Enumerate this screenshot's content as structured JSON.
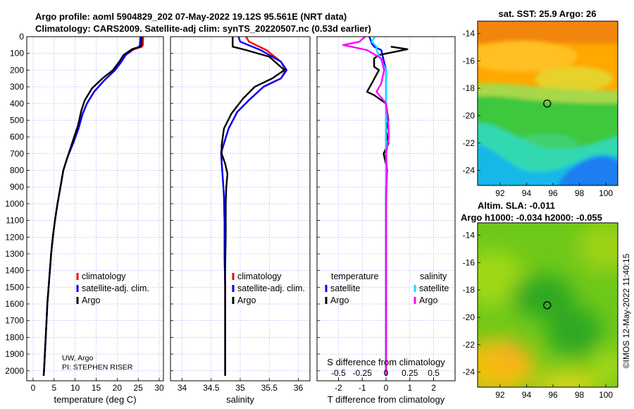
{
  "header": {
    "title_line1": "Argo profile: aoml 5904829_202 07-May-2022 19.12S 95.561E (NRT data)",
    "title_line2": "Climatology: CARS2009. Satellite-adj clim: synTS_20220507.nc (0.53d earlier)"
  },
  "credits": {
    "line1": "UW, Argo",
    "line2": "PI: STEPHEN RISER"
  },
  "stamp": "©IMOS 12-May-2022 11:40:15",
  "colors": {
    "climatology": "#ff0000",
    "satellite": "#0000ff",
    "argo": "#000000",
    "sal_satellite": "#00e5ff",
    "sal_argo": "#ff00ff"
  },
  "chart_data": [
    {
      "type": "line",
      "xlabel": "temperature (deg C)",
      "ylabel": "",
      "xlim": [
        -1.5,
        31
      ],
      "ylim": [
        2060,
        0
      ],
      "xticks": [
        0,
        5,
        10,
        15,
        20,
        25,
        30
      ],
      "yticks": [
        0,
        100,
        200,
        300,
        400,
        500,
        600,
        700,
        800,
        900,
        1000,
        1100,
        1200,
        1300,
        1400,
        1500,
        1600,
        1700,
        1800,
        1900,
        2000
      ],
      "grid": true,
      "legend": {
        "placement": "lower-right",
        "entries": [
          "climatology",
          "satellite-adj. clim.",
          "Argo"
        ]
      },
      "series": [
        {
          "name": "climatology",
          "color": "#ff0000",
          "points": [
            [
              26.2,
              0
            ],
            [
              26.1,
              50
            ],
            [
              25.9,
              60
            ],
            [
              24,
              75
            ],
            [
              22,
              110
            ],
            [
              21,
              150
            ],
            [
              19.5,
              200
            ],
            [
              17,
              260
            ],
            [
              14.5,
              330
            ],
            [
              12.8,
              400
            ],
            [
              11.8,
              460
            ],
            [
              10.8,
              550
            ],
            [
              9.5,
              640
            ],
            [
              8.2,
              720
            ],
            [
              7.2,
              800
            ],
            [
              6.5,
              900
            ],
            [
              5.8,
              1000
            ],
            [
              5.2,
              1100
            ],
            [
              4.7,
              1200
            ],
            [
              4.3,
              1300
            ],
            [
              4,
              1400
            ],
            [
              3.7,
              1500
            ],
            [
              3.4,
              1600
            ],
            [
              3.2,
              1700
            ],
            [
              3,
              1800
            ],
            [
              2.8,
              1900
            ],
            [
              2.6,
              2000
            ],
            [
              2.5,
              2030
            ]
          ]
        },
        {
          "name": "satellite-adj. clim.",
          "color": "#0000ff",
          "points": [
            [
              25.5,
              0
            ],
            [
              25.4,
              50
            ],
            [
              25.2,
              60
            ],
            [
              23.8,
              75
            ],
            [
              22,
              110
            ],
            [
              21,
              150
            ],
            [
              19.5,
              200
            ],
            [
              17,
              260
            ],
            [
              14.5,
              330
            ],
            [
              12.8,
              400
            ],
            [
              11.8,
              460
            ],
            [
              10.8,
              550
            ],
            [
              9.5,
              640
            ],
            [
              8.2,
              720
            ],
            [
              7.2,
              800
            ],
            [
              6.5,
              900
            ],
            [
              5.8,
              1000
            ],
            [
              5.2,
              1100
            ],
            [
              4.7,
              1200
            ],
            [
              4.3,
              1300
            ],
            [
              4,
              1400
            ],
            [
              3.7,
              1500
            ],
            [
              3.4,
              1600
            ],
            [
              3.2,
              1700
            ],
            [
              3,
              1800
            ],
            [
              2.8,
              1900
            ],
            [
              2.6,
              2000
            ],
            [
              2.5,
              2030
            ]
          ]
        },
        {
          "name": "Argo",
          "color": "#000000",
          "points": [
            [
              25.8,
              0
            ],
            [
              25.8,
              50
            ],
            [
              25.5,
              60
            ],
            [
              23.5,
              75
            ],
            [
              21.5,
              110
            ],
            [
              20.5,
              150
            ],
            [
              19,
              200
            ],
            [
              16.5,
              250
            ],
            [
              14,
              310
            ],
            [
              12.3,
              380
            ],
            [
              11.5,
              440
            ],
            [
              10.7,
              530
            ],
            [
              9.5,
              620
            ],
            [
              8.2,
              720
            ],
            [
              7.2,
              800
            ],
            [
              6.5,
              900
            ],
            [
              5.8,
              1000
            ],
            [
              5.2,
              1100
            ],
            [
              4.7,
              1200
            ],
            [
              4.3,
              1300
            ],
            [
              4,
              1400
            ],
            [
              3.7,
              1500
            ],
            [
              3.4,
              1600
            ],
            [
              3.2,
              1700
            ],
            [
              3,
              1800
            ],
            [
              2.8,
              1900
            ],
            [
              2.6,
              2000
            ],
            [
              2.5,
              2030
            ]
          ]
        }
      ]
    },
    {
      "type": "line",
      "xlabel": "salinity",
      "ylabel": "",
      "xlim": [
        33.8,
        36.2
      ],
      "ylim": [
        2060,
        0
      ],
      "xticks": [
        34,
        34.5,
        35,
        35.5,
        36
      ],
      "grid": true,
      "legend": {
        "placement": "lower-right",
        "entries": [
          "climatology",
          "satellite-adj. clim.",
          "Argo"
        ]
      },
      "series": [
        {
          "name": "climatology",
          "color": "#ff0000",
          "points": [
            [
              35.1,
              0
            ],
            [
              35.15,
              30
            ],
            [
              35.45,
              80
            ],
            [
              35.7,
              150
            ],
            [
              35.78,
              200
            ],
            [
              35.7,
              250
            ],
            [
              35.4,
              300
            ],
            [
              35.15,
              380
            ],
            [
              34.95,
              450
            ],
            [
              34.8,
              550
            ],
            [
              34.72,
              640
            ],
            [
              34.68,
              690
            ],
            [
              34.68,
              750
            ],
            [
              34.7,
              850
            ],
            [
              34.72,
              950
            ],
            [
              34.73,
              1100
            ],
            [
              34.73,
              1300
            ],
            [
              34.74,
              1500
            ],
            [
              34.74,
              1700
            ],
            [
              34.74,
              1900
            ],
            [
              34.74,
              2030
            ]
          ]
        },
        {
          "name": "satellite-adj. clim.",
          "color": "#0000ff",
          "points": [
            [
              34.97,
              0
            ],
            [
              35,
              30
            ],
            [
              35.35,
              80
            ],
            [
              35.7,
              150
            ],
            [
              35.8,
              200
            ],
            [
              35.7,
              250
            ],
            [
              35.4,
              300
            ],
            [
              35.15,
              380
            ],
            [
              34.95,
              450
            ],
            [
              34.8,
              550
            ],
            [
              34.72,
              640
            ],
            [
              34.67,
              690
            ],
            [
              34.68,
              750
            ],
            [
              34.7,
              850
            ],
            [
              34.72,
              950
            ],
            [
              34.73,
              1100
            ],
            [
              34.73,
              1300
            ],
            [
              34.74,
              1500
            ],
            [
              34.74,
              1700
            ],
            [
              34.74,
              1900
            ],
            [
              34.74,
              2030
            ]
          ]
        },
        {
          "name": "Argo",
          "color": "#000000",
          "points": [
            [
              34.87,
              0
            ],
            [
              34.87,
              60
            ],
            [
              35.1,
              80
            ],
            [
              35.5,
              120
            ],
            [
              35.76,
              200
            ],
            [
              35.55,
              250
            ],
            [
              35.25,
              300
            ],
            [
              35.05,
              370
            ],
            [
              34.85,
              460
            ],
            [
              34.72,
              550
            ],
            [
              34.68,
              650
            ],
            [
              34.68,
              700
            ],
            [
              34.74,
              760
            ],
            [
              34.78,
              820
            ],
            [
              34.76,
              900
            ],
            [
              34.75,
              1000
            ],
            [
              34.75,
              1200
            ],
            [
              34.74,
              1400
            ],
            [
              34.74,
              1600
            ],
            [
              34.74,
              1800
            ],
            [
              34.74,
              2030
            ]
          ]
        }
      ]
    },
    {
      "type": "line",
      "xlabel": "T difference from climatology",
      "x2label": "S difference from climatology",
      "ylabel": "",
      "xlim": [
        -2.9,
        2.9
      ],
      "x2lim": [
        -0.725,
        0.725
      ],
      "ylim": [
        2060,
        0
      ],
      "xticks": [
        -2,
        -1,
        0,
        1,
        2
      ],
      "x2ticks": [
        -0.5,
        -0.25,
        0,
        0.25,
        0.5
      ],
      "x2ticklabels": [
        "-0.5",
        "-0.25",
        "0",
        "0.25",
        "0.5"
      ],
      "grid": true,
      "legend": {
        "placement": "lower",
        "temperature_title": "temperature",
        "salinity_title": "salinity",
        "temperature_entries": [
          "satellite",
          "Argo"
        ],
        "salinity_entries": [
          "satellite",
          "Argo"
        ]
      },
      "series": [
        {
          "name": "satellite",
          "group": "temperature",
          "axis": "T",
          "color": "#0000ff",
          "points": [
            [
              -0.7,
              0
            ],
            [
              -0.6,
              40
            ],
            [
              -0.5,
              60
            ],
            [
              -0.2,
              80
            ],
            [
              0,
              200
            ],
            [
              0,
              700
            ],
            [
              0,
              1200
            ],
            [
              0,
              2030
            ]
          ]
        },
        {
          "name": "Argo",
          "group": "temperature",
          "axis": "T",
          "color": "#000000",
          "points": [
            [
              0.2,
              60
            ],
            [
              0.9,
              75
            ],
            [
              -0.3,
              110
            ],
            [
              -0.5,
              130
            ],
            [
              -0.5,
              180
            ],
            [
              -0.3,
              200
            ],
            [
              -0.6,
              280
            ],
            [
              -0.8,
              330
            ],
            [
              -0.5,
              350
            ],
            [
              0,
              400
            ],
            [
              0.1,
              500
            ],
            [
              0,
              560
            ],
            [
              0.1,
              640
            ],
            [
              -0.1,
              700
            ],
            [
              0.05,
              800
            ],
            [
              0,
              900
            ],
            [
              0,
              1100
            ],
            [
              0,
              1400
            ],
            [
              0,
              2030
            ]
          ]
        },
        {
          "name": "satellite",
          "group": "salinity",
          "axis": "S",
          "color": "#00e5ff",
          "points": [
            [
              -0.12,
              0
            ],
            [
              -0.15,
              30
            ],
            [
              -0.1,
              60
            ],
            [
              -0.1,
              80
            ],
            [
              0,
              200
            ],
            [
              0,
              700
            ],
            [
              0,
              1200
            ],
            [
              0,
              2030
            ]
          ]
        },
        {
          "name": "Argo",
          "group": "salinity",
          "axis": "S",
          "color": "#ff00ff",
          "points": [
            [
              -0.22,
              0
            ],
            [
              -0.28,
              30
            ],
            [
              -0.45,
              50
            ],
            [
              -0.2,
              80
            ],
            [
              -0.05,
              130
            ],
            [
              -0.02,
              200
            ],
            [
              -0.05,
              280
            ],
            [
              -0.1,
              330
            ],
            [
              0,
              400
            ],
            [
              0.02,
              500
            ],
            [
              0.03,
              600
            ],
            [
              0,
              700
            ],
            [
              0.01,
              800
            ],
            [
              0,
              1000
            ],
            [
              0,
              1500
            ],
            [
              0,
              2030
            ]
          ]
        }
      ]
    },
    {
      "type": "heatmap",
      "title": "sat. SST: 25.9 Argo: 26",
      "xlim": [
        90.3,
        100.9
      ],
      "ylim": [
        -25.1,
        -13.1
      ],
      "xticks": [
        92,
        94,
        96,
        98,
        100
      ],
      "yticks": [
        -14,
        -16,
        -18,
        -20,
        -22,
        -24
      ],
      "marker": {
        "lon": 95.56,
        "lat": -19.12
      }
    },
    {
      "type": "heatmap",
      "title_line1": "Altim. SLA: -0.011",
      "title_line2": "Argo h1000: -0.034 h2000: -0.055",
      "xlim": [
        90.3,
        100.9
      ],
      "ylim": [
        -25.1,
        -13.1
      ],
      "xticks": [
        92,
        94,
        96,
        98,
        100
      ],
      "yticks": [
        -14,
        -16,
        -18,
        -20,
        -22,
        -24
      ],
      "marker": {
        "lon": 95.56,
        "lat": -19.12
      }
    }
  ]
}
